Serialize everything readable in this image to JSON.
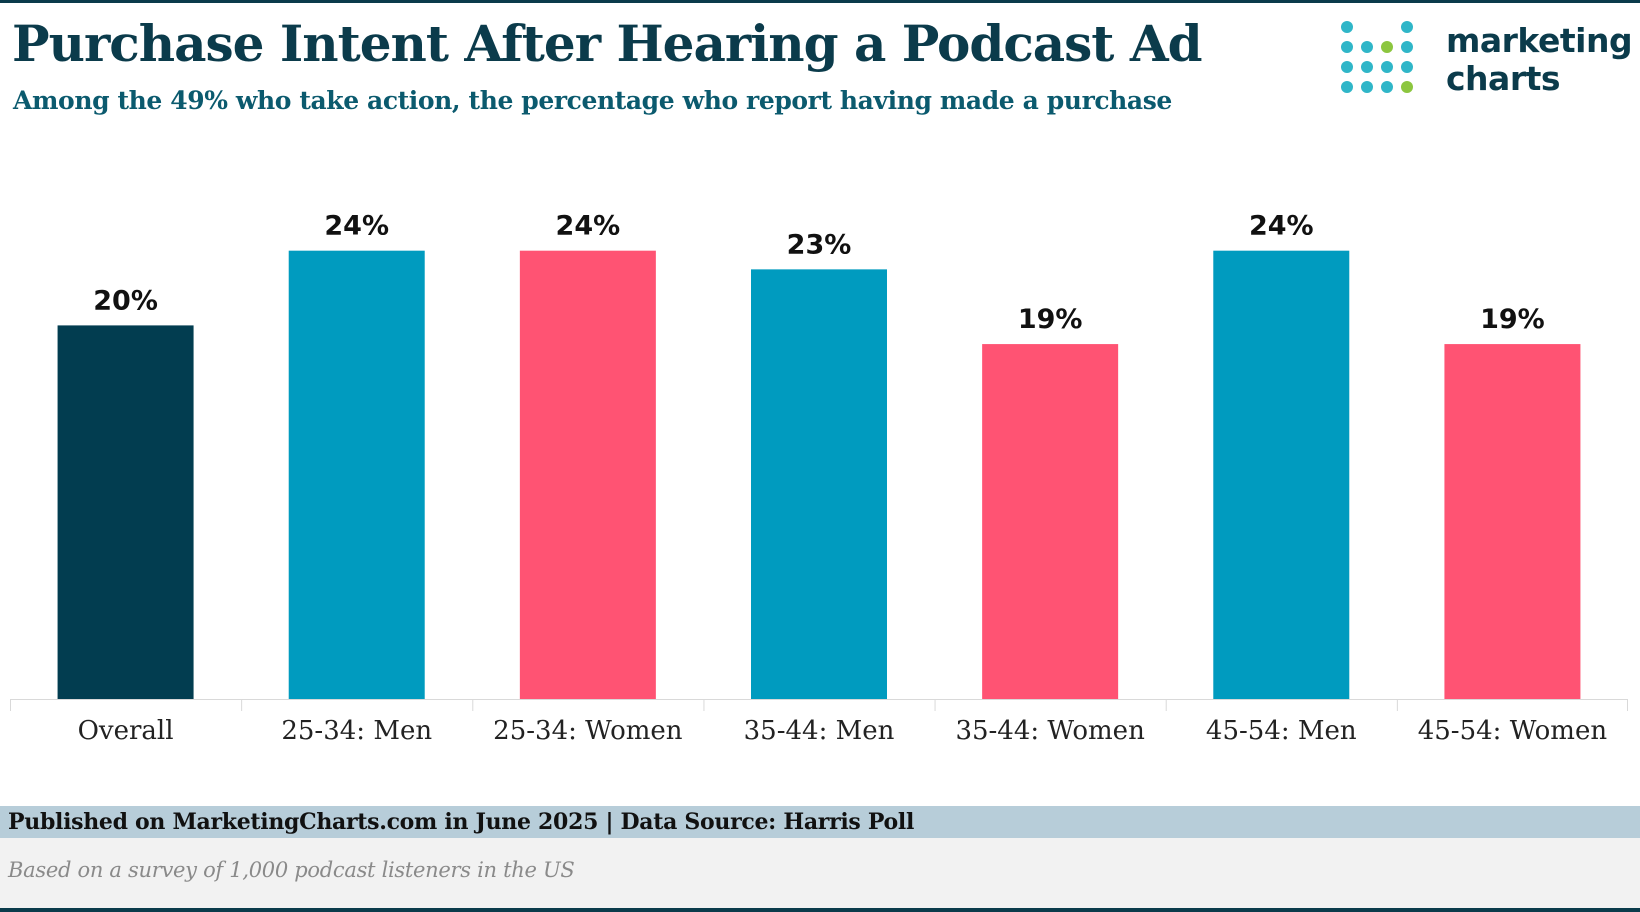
{
  "header": {
    "title": "Purchase Intent After Hearing a Podcast Ad",
    "subtitle": "Among the 49% who take action, the percentage who report having made a purchase"
  },
  "logo": {
    "line1": "marketing",
    "line2": "charts"
  },
  "footer": {
    "source": "Published on MarketingCharts.com in June 2025 | Data Source: Harris Poll",
    "note": "Based on a survey of 1,000 podcast listeners in the US"
  },
  "colors": {
    "overall": "#023d50",
    "men": "#009bbf",
    "women": "#ff5373",
    "logo_dark": "#0b3b4b",
    "logo_teal": "#2fb6c8",
    "logo_green": "#8cc63f"
  },
  "chart_data": {
    "type": "bar",
    "title": "Purchase Intent After Hearing a Podcast Ad",
    "xlabel": "",
    "ylabel": "",
    "ylim": [
      0,
      25
    ],
    "grid": false,
    "categories": [
      "Overall",
      "25-34: Men",
      "25-34: Women",
      "35-44: Men",
      "35-44: Women",
      "45-54: Men",
      "45-54: Women"
    ],
    "values": [
      20,
      24,
      24,
      23,
      19,
      24,
      19
    ],
    "value_labels": [
      "20%",
      "24%",
      "24%",
      "23%",
      "19%",
      "24%",
      "19%"
    ],
    "groups": [
      "overall",
      "men",
      "women",
      "men",
      "women",
      "men",
      "women"
    ]
  }
}
